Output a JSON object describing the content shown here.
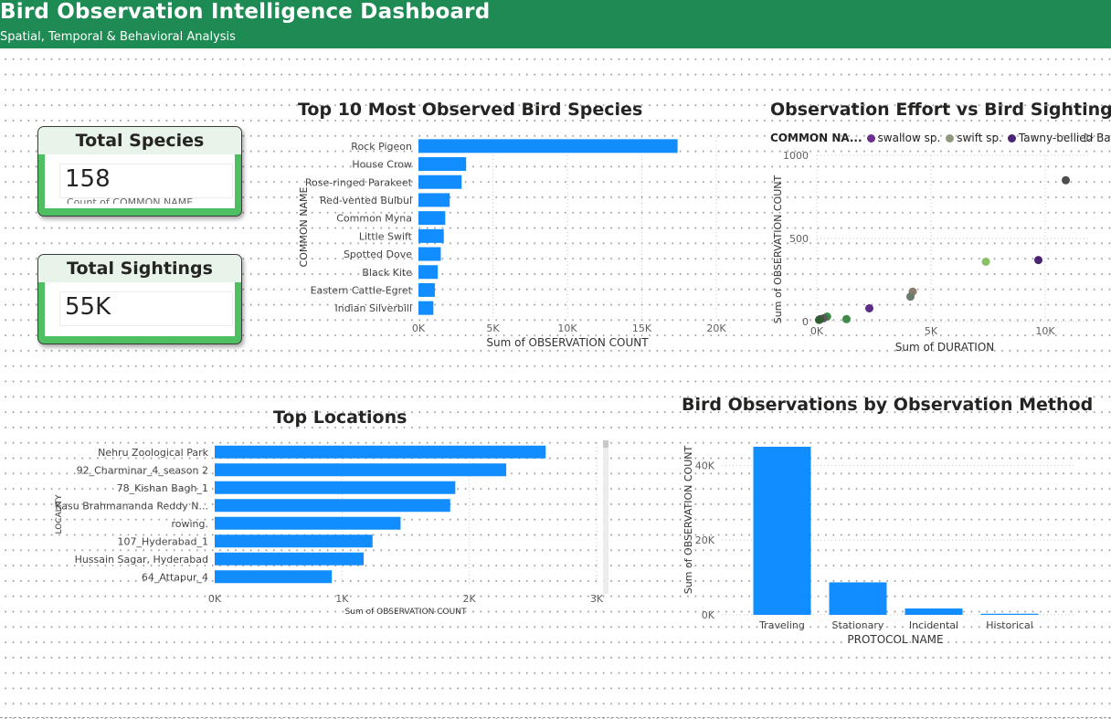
{
  "header": {
    "title": "Bird Observation Intelligence Dashboard",
    "subtitle": "Spatial, Temporal & Behavioral Analysis"
  },
  "cards": [
    {
      "caption": "Total Species",
      "value": "158",
      "sub": "Count of COMMON NAME"
    },
    {
      "caption": "Total Sightings",
      "value": "55K",
      "sub": ""
    }
  ],
  "colors": {
    "header": "#1e8a54",
    "bar": "#118dff",
    "card_frame": "#4fc062"
  },
  "chart_data": [
    {
      "type": "bar",
      "orientation": "horizontal",
      "title": "Top 10 Most Observed Bird Species",
      "ylabel": "COMMON NAME",
      "xlabel": "Sum of OBSERVATION COUNT",
      "categories": [
        "Rock Pigeon",
        "House Crow",
        "Rose-ringed Parakeet",
        "Red-vented Bulbul",
        "Common Myna",
        "Little Swift",
        "Spotted Dove",
        "Black Kite",
        "Eastern Cattle-Egret",
        "Indian Silverbill"
      ],
      "values": [
        17400,
        3200,
        2900,
        2100,
        1800,
        1700,
        1500,
        1300,
        1100,
        1000
      ],
      "xlim": [
        0,
        20000
      ],
      "xticks": [
        "0K",
        "5K",
        "10K",
        "15K",
        "20K"
      ],
      "grid": true
    },
    {
      "type": "scatter",
      "title": "Observation Effort vs Bird Sightings",
      "xlabel": "Sum of DURATION",
      "ylabel": "Sum of OBSERVATION COUNT",
      "legend_title": "COMMON NA...",
      "legend": [
        {
          "name": "swallow sp.",
          "color": "#6b2f8f"
        },
        {
          "name": "swift sp.",
          "color": "#8e9a7e"
        },
        {
          "name": "Tawny-bellied Ba...",
          "color": "#4a2473"
        }
      ],
      "xlim": [
        0,
        12000
      ],
      "ylim": [
        0,
        1000
      ],
      "xticks": [
        "0K",
        "5K",
        "10K"
      ],
      "yticks": [
        "0",
        "500",
        "1000"
      ],
      "points": [
        {
          "x": 10900,
          "y": 850,
          "color": "#4d4d4d"
        },
        {
          "x": 7400,
          "y": 360,
          "color": "#8bbf63"
        },
        {
          "x": 9700,
          "y": 370,
          "color": "#4a2473"
        },
        {
          "x": 4200,
          "y": 180,
          "color": "#8a7e6a"
        },
        {
          "x": 4100,
          "y": 150,
          "color": "#6b7a6b"
        },
        {
          "x": 2300,
          "y": 80,
          "color": "#5b2c83"
        },
        {
          "x": 1300,
          "y": 15,
          "color": "#3f8a47"
        },
        {
          "x": 450,
          "y": 30,
          "color": "#3f8a47"
        },
        {
          "x": 300,
          "y": 20,
          "color": "#5a5a5a"
        },
        {
          "x": 150,
          "y": 15,
          "color": "#4d4d4d"
        },
        {
          "x": 100,
          "y": 10,
          "color": "#2f5d2f"
        }
      ],
      "grid": true
    },
    {
      "type": "bar",
      "orientation": "horizontal",
      "title": "Top Locations",
      "ylabel": "LOCALITY",
      "xlabel": "Sum of OBSERVATION COUNT",
      "categories": [
        "Nehru Zoological Park",
        "92_Charminar_4_season 2",
        "78_Kishan Bagh_1",
        "Kasu Brahmananda Reddy N...",
        "rowing.",
        "107_Hyderabad_1",
        "Hussain Sagar, Hyderabad",
        "64_Attapur_4"
      ],
      "values": [
        2600,
        2290,
        1890,
        1850,
        1460,
        1240,
        1170,
        920
      ],
      "xlim": [
        0,
        3000
      ],
      "xticks": [
        "0K",
        "1K",
        "2K",
        "3K"
      ],
      "grid": true
    },
    {
      "type": "bar",
      "orientation": "vertical",
      "title": "Bird Observations by Observation Method",
      "xlabel": "PROTOCOL NAME",
      "ylabel": "Sum of OBSERVATION COUNT",
      "categories": [
        "Traveling",
        "Stationary",
        "Incidental",
        "Historical"
      ],
      "values": [
        45000,
        8700,
        1700,
        300
      ],
      "ylim": [
        0,
        45000
      ],
      "yticks": [
        "0K",
        "20K",
        "40K"
      ],
      "grid": true
    }
  ]
}
